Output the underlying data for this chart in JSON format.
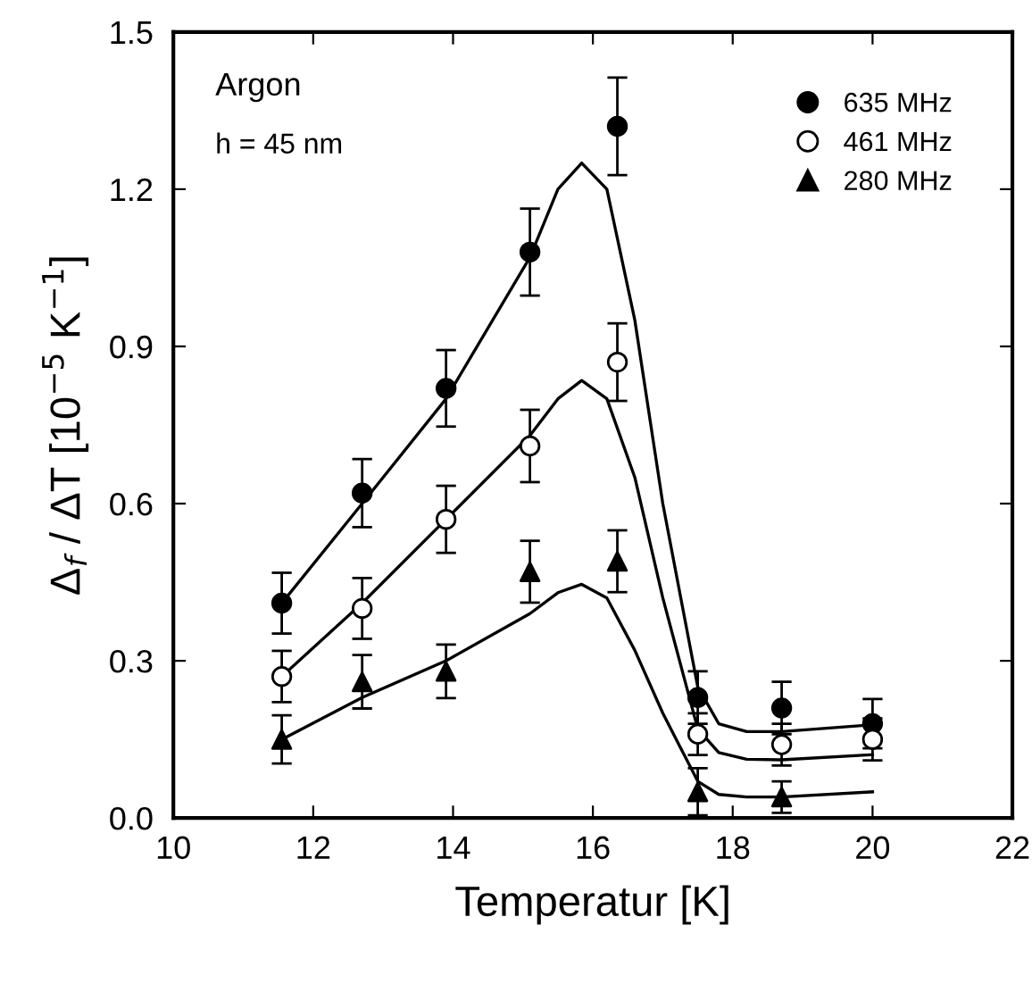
{
  "chart_data": {
    "type": "scatter",
    "xlabel": "Temperatur [K]",
    "ylabel": "Δ$_{f}$ / ΔT [10$^{−5}$ K$^{−1}$]",
    "annotations": [
      "Argon",
      "h = 45 nm"
    ],
    "x": [
      11.55,
      12.7,
      13.9,
      15.1,
      16.35,
      17.5,
      18.7,
      20.0
    ],
    "series": [
      {
        "name": "635 MHz",
        "color": "#000000",
        "marker": "circle",
        "values": [
          0.41,
          0.62,
          0.82,
          1.08,
          1.32,
          0.23,
          0.21,
          0.18
        ],
        "errors": [
          0.058,
          0.065,
          0.073,
          0.083,
          0.093,
          0.05,
          0.05,
          0.047
        ]
      },
      {
        "name": "461 MHz",
        "color": "#ffffff",
        "marker": "circle",
        "values": [
          0.27,
          0.4,
          0.57,
          0.71,
          0.87,
          0.16,
          0.14,
          0.15
        ],
        "errors": [
          0.049,
          0.058,
          0.064,
          0.069,
          0.074,
          0.04,
          0.04,
          0.04
        ]
      },
      {
        "name": "280 MHz",
        "color": "#000000",
        "marker": "triangle",
        "values": [
          0.15,
          0.26,
          0.28,
          0.47,
          0.49,
          0.05,
          0.04,
          null
        ],
        "errors": [
          0.046,
          0.051,
          0.051,
          0.059,
          0.059,
          0.045,
          0.03,
          null
        ]
      },
      {
        "type": "line",
        "color": "#000000",
        "x": [
          11.55,
          12.7,
          13.9,
          15.1,
          15.5,
          15.84,
          16.2,
          16.6,
          17.0,
          17.5,
          17.8,
          18.2,
          18.7,
          20.0
        ],
        "values": [
          0.41,
          0.6,
          0.8,
          1.07,
          1.2,
          1.25,
          1.2,
          0.95,
          0.6,
          0.25,
          0.18,
          0.165,
          0.165,
          0.178
        ]
      },
      {
        "type": "line",
        "color": "#000000",
        "x": [
          11.55,
          12.7,
          13.9,
          15.1,
          15.5,
          15.84,
          16.2,
          16.6,
          17.0,
          17.5,
          17.8,
          18.2,
          18.7,
          20.0
        ],
        "values": [
          0.27,
          0.41,
          0.57,
          0.73,
          0.8,
          0.835,
          0.8,
          0.65,
          0.42,
          0.17,
          0.125,
          0.112,
          0.111,
          0.121
        ]
      },
      {
        "type": "line",
        "color": "#000000",
        "x": [
          11.55,
          12.7,
          13.9,
          15.1,
          15.5,
          15.84,
          16.2,
          16.6,
          17.0,
          17.5,
          17.8,
          18.2,
          18.7,
          20.0
        ],
        "values": [
          0.15,
          0.23,
          0.3,
          0.39,
          0.43,
          0.446,
          0.42,
          0.32,
          0.2,
          0.07,
          0.045,
          0.04,
          0.04,
          0.05
        ]
      }
    ],
    "xlim": [
      10,
      22
    ],
    "xticks": [
      10,
      12,
      14,
      16,
      18,
      20,
      22
    ],
    "ylim": [
      0,
      1.5
    ],
    "yticks": [
      {
        "value": 0,
        "label": "0.0"
      },
      {
        "value": 0.3,
        "label": "0.3"
      },
      {
        "value": 0.6,
        "label": "0.6"
      },
      {
        "value": 0.9,
        "label": "0.9"
      },
      {
        "value": 1.2,
        "label": "1.2"
      },
      {
        "value": 1.5,
        "label": "1.5"
      }
    ],
    "grid": false,
    "legend": "top right",
    "line_style": "solid"
  }
}
